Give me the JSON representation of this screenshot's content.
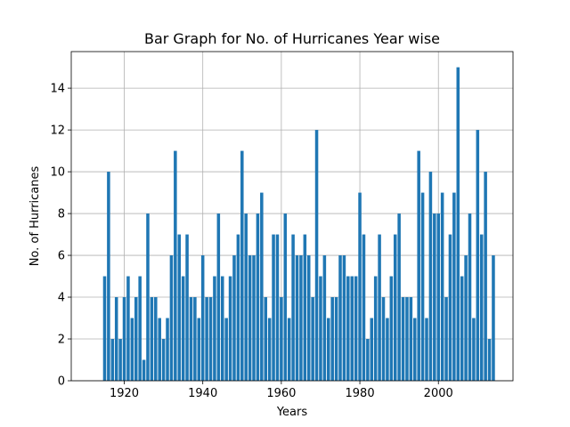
{
  "chart_data": {
    "type": "bar",
    "title": "Bar Graph for No. of Hurricanes Year wise",
    "xlabel": "Years",
    "ylabel": "No. of Hurricanes",
    "xlim": [
      1906.5,
      2019
    ],
    "ylim": [
      0,
      15.75
    ],
    "xticks": [
      1920,
      1940,
      1960,
      1980,
      2000
    ],
    "yticks": [
      0,
      2,
      4,
      6,
      8,
      10,
      12,
      14
    ],
    "grid": true,
    "bar_color": "#1f77b4",
    "x": [
      1915,
      1916,
      1917,
      1918,
      1919,
      1920,
      1921,
      1922,
      1923,
      1924,
      1925,
      1926,
      1927,
      1928,
      1929,
      1930,
      1931,
      1932,
      1933,
      1934,
      1935,
      1936,
      1937,
      1938,
      1939,
      1940,
      1941,
      1942,
      1943,
      1944,
      1945,
      1946,
      1947,
      1948,
      1949,
      1950,
      1951,
      1952,
      1953,
      1954,
      1955,
      1956,
      1957,
      1958,
      1959,
      1960,
      1961,
      1962,
      1963,
      1964,
      1965,
      1966,
      1967,
      1968,
      1969,
      1970,
      1971,
      1972,
      1973,
      1974,
      1975,
      1976,
      1977,
      1978,
      1979,
      1980,
      1981,
      1982,
      1983,
      1984,
      1985,
      1986,
      1987,
      1988,
      1989,
      1990,
      1991,
      1992,
      1993,
      1994,
      1995,
      1996,
      1997,
      1998,
      1999,
      2000,
      2001,
      2002,
      2003,
      2004,
      2005,
      2006,
      2007,
      2008,
      2009,
      2010,
      2011,
      2012,
      2013,
      2014
    ],
    "values": [
      5,
      10,
      2,
      4,
      2,
      4,
      5,
      3,
      4,
      5,
      1,
      8,
      4,
      4,
      3,
      2,
      3,
      6,
      11,
      7,
      5,
      7,
      4,
      4,
      3,
      6,
      4,
      4,
      5,
      8,
      5,
      3,
      5,
      6,
      7,
      11,
      8,
      6,
      6,
      8,
      9,
      4,
      3,
      7,
      7,
      4,
      8,
      3,
      7,
      6,
      6,
      7,
      6,
      4,
      12,
      5,
      6,
      3,
      4,
      4,
      6,
      6,
      5,
      5,
      5,
      9,
      7,
      2,
      3,
      5,
      7,
      4,
      3,
      5,
      7,
      8,
      4,
      4,
      4,
      3,
      11,
      9,
      3,
      10,
      8,
      8,
      9,
      4,
      7,
      9,
      15,
      5,
      6,
      8,
      3,
      12,
      7,
      10,
      2,
      6
    ]
  }
}
